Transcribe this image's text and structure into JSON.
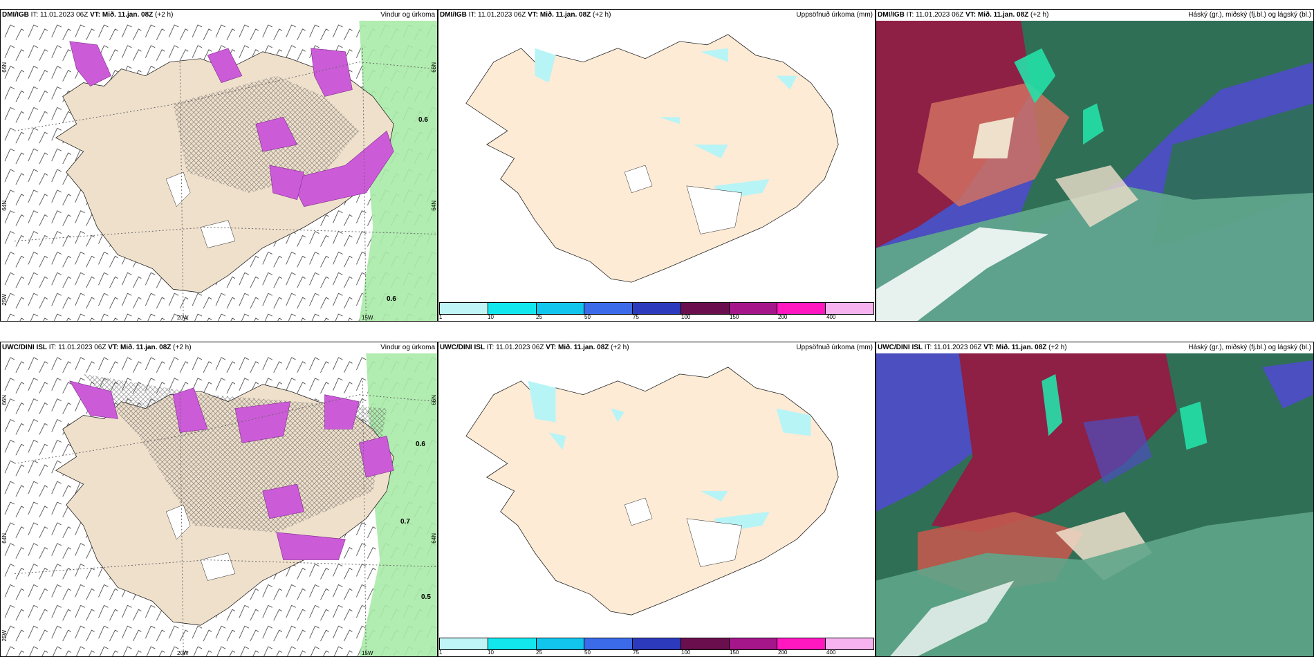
{
  "panels": [
    {
      "model": "DMI/IGB",
      "it_label": "IT:",
      "it_value": "11.01.2023 06Z",
      "vt_label": "VT: Mið. 11.jan. 08Z",
      "offset": "(+2 h)",
      "title": "Vindur og úrkoma"
    },
    {
      "model": "DMI/IGB",
      "it_label": "IT:",
      "it_value": "11.01.2023 06Z",
      "vt_label": "VT: Mið. 11.jan. 08Z",
      "offset": "(+2 h)",
      "title": "Uppsöfnuð úrkoma (mm)"
    },
    {
      "model": "DMI/IGB",
      "it_label": "IT:",
      "it_value": "11.01.2023 06Z",
      "vt_label": "VT: Mið. 11.jan. 08Z",
      "offset": "(+2 h)",
      "title": "Háský (gr.), miðský (fj.bl.) og lágský (bl.)"
    },
    {
      "model": "UWC/DINI ISL",
      "it_label": "IT:",
      "it_value": "11.01.2023 06Z",
      "vt_label": "VT: Mið. 11.jan. 08Z",
      "offset": "(+2 h)",
      "title": "Vindur og úrkoma"
    },
    {
      "model": "UWC/DINI ISL",
      "it_label": "IT:",
      "it_value": "11.01.2023 06Z",
      "vt_label": "VT: Mið. 11.jan. 08Z",
      "offset": "(+2 h)",
      "title": "Uppsöfnuð úrkoma (mm)"
    },
    {
      "model": "UWC/DINI ISL",
      "it_label": "IT:",
      "it_value": "11.01.2023 06Z",
      "vt_label": "VT: Mið. 11.jan. 08Z",
      "offset": "(+2 h)",
      "title": "Háský (gr.), miðský (fj.bl.) og lágský (bl.)"
    }
  ],
  "wind_map": {
    "lon_labels": [
      "20W",
      "15W"
    ],
    "lat_labels": [
      "66N",
      "64N"
    ],
    "left_lon_label": "25W",
    "top": {
      "values": [
        "0.6",
        "0.6"
      ]
    },
    "bottom": {
      "values": [
        "0.6",
        "0.7",
        "0.5"
      ]
    }
  },
  "precip_colorbar": {
    "ticks": [
      "1",
      "10",
      "25",
      "50",
      "75",
      "100",
      "150",
      "200",
      "400"
    ],
    "colors": [
      "#bff5f7",
      "#12e7ee",
      "#11c5ec",
      "#3c6bea",
      "#2c3bbd",
      "#6a0e4d",
      "#a5168a",
      "#ff17c0",
      "#f7b3f0"
    ]
  },
  "colors": {
    "land": "#efe0cc",
    "precip": "#cc5bd8",
    "green": "#9fe8a0",
    "cyan": "#b7f4f6",
    "cloud_high": "#2f6f55",
    "cloud_mid": "#8e1f45",
    "cloud_low": "#4b4fbf"
  }
}
